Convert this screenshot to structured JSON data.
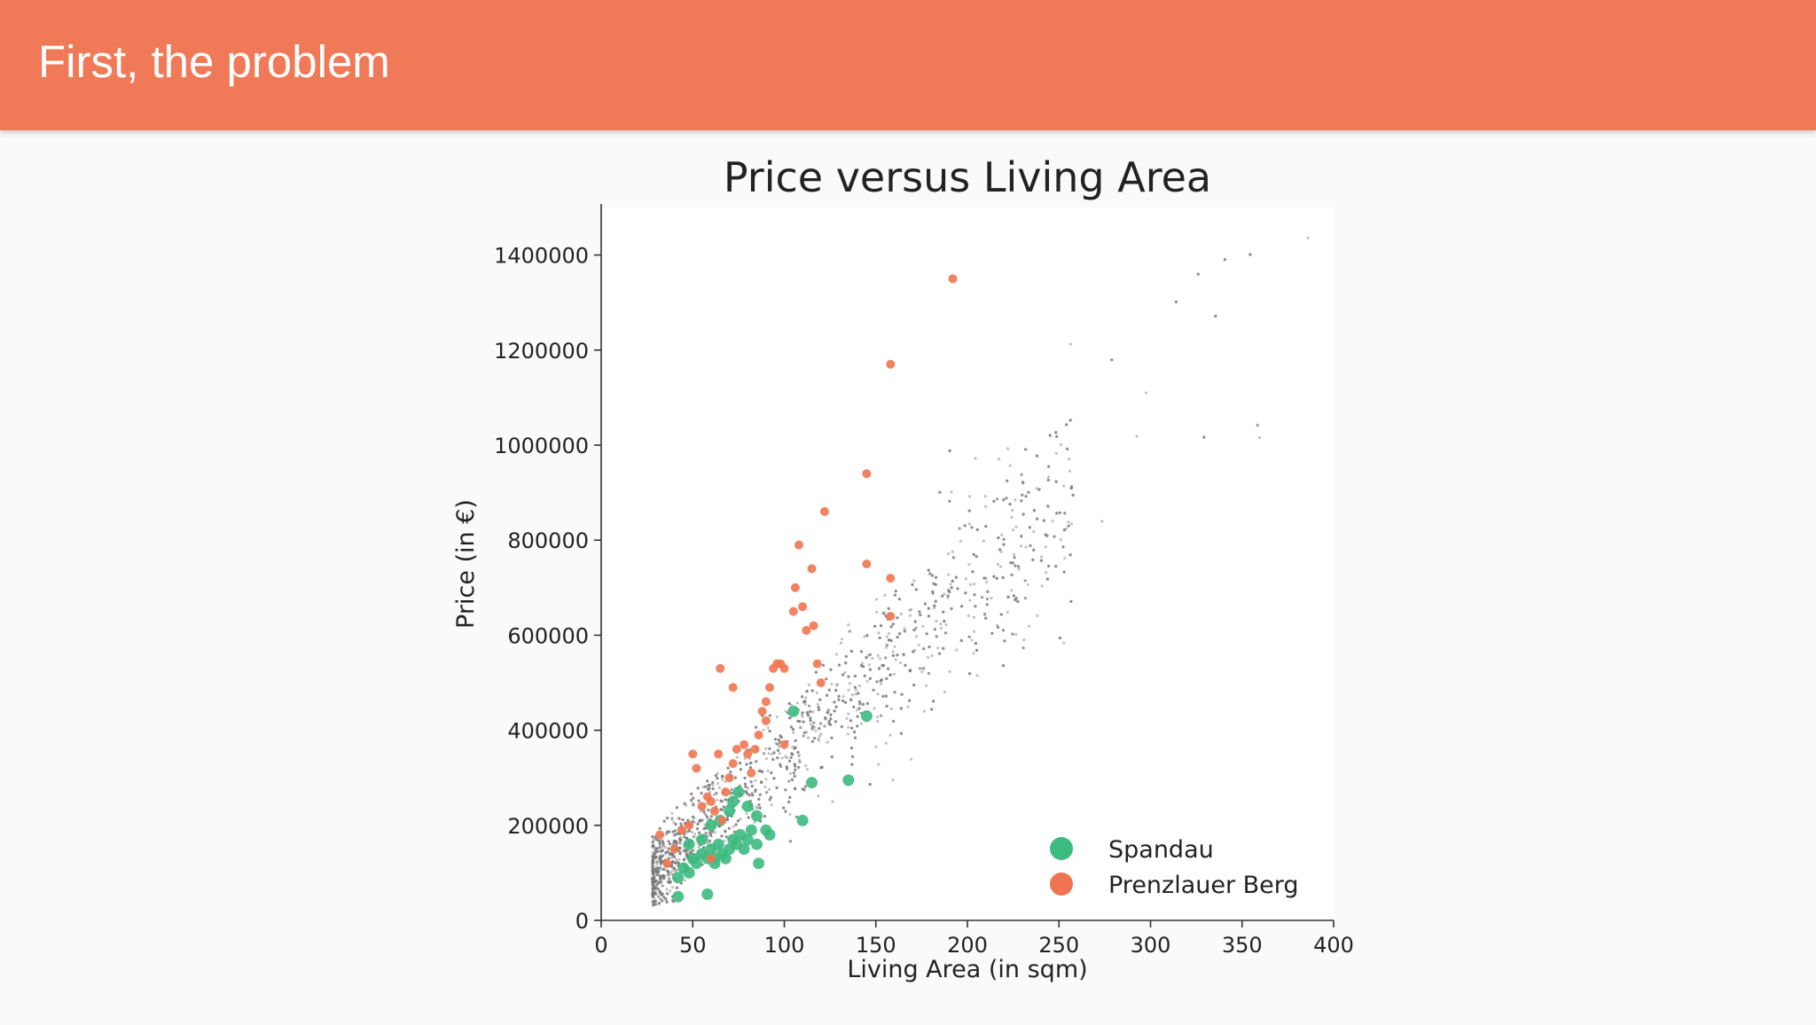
{
  "header": {
    "title": "First, the problem",
    "color": "#f07a57"
  },
  "colors": {
    "background": "#fafafa",
    "background_points": "#777777",
    "spandau": "#3dba80",
    "prenzlauer": "#ef7451",
    "axis": "#333333"
  },
  "chart_data": {
    "type": "scatter",
    "title": "Price versus Living Area",
    "xlabel": "Living Area (in sqm)",
    "ylabel": "Price (in €)",
    "xlim": [
      0,
      400
    ],
    "ylim": [
      0,
      1500000
    ],
    "xticks": [
      0,
      50,
      100,
      150,
      200,
      250,
      300,
      350,
      400
    ],
    "yticks": [
      0,
      200000,
      400000,
      600000,
      800000,
      1000000,
      1200000,
      1400000
    ],
    "xtick_labels": [
      "0",
      "50",
      "100",
      "150",
      "200",
      "250",
      "300",
      "350",
      "400"
    ],
    "ytick_labels": [
      "0",
      "200000",
      "400000",
      "600000",
      "800000",
      "1000000",
      "1200000",
      "1400000"
    ],
    "grid": false,
    "legend_position": "bottom-right",
    "series": [
      {
        "name": "Spandau",
        "color": "#3dba80",
        "points": [
          [
            42,
            90000
          ],
          [
            45,
            110000
          ],
          [
            48,
            100000
          ],
          [
            50,
            130000
          ],
          [
            52,
            120000
          ],
          [
            55,
            140000
          ],
          [
            58,
            130000
          ],
          [
            60,
            150000
          ],
          [
            62,
            120000
          ],
          [
            64,
            160000
          ],
          [
            66,
            140000
          ],
          [
            68,
            130000
          ],
          [
            70,
            150000
          ],
          [
            72,
            170000
          ],
          [
            74,
            160000
          ],
          [
            76,
            180000
          ],
          [
            78,
            150000
          ],
          [
            80,
            170000
          ],
          [
            82,
            190000
          ],
          [
            85,
            160000
          ],
          [
            75,
            270000
          ],
          [
            80,
            240000
          ],
          [
            85,
            220000
          ],
          [
            90,
            190000
          ],
          [
            110,
            210000
          ],
          [
            115,
            290000
          ],
          [
            135,
            295000
          ],
          [
            145,
            430000
          ],
          [
            105,
            440000
          ],
          [
            58,
            55000
          ],
          [
            42,
            50000
          ],
          [
            86,
            120000
          ],
          [
            92,
            180000
          ],
          [
            60,
            200000
          ],
          [
            65,
            210000
          ],
          [
            70,
            230000
          ],
          [
            55,
            170000
          ],
          [
            48,
            160000
          ],
          [
            72,
            250000
          ],
          [
            62,
            130000
          ]
        ]
      },
      {
        "name": "Prenzlauer Berg",
        "color": "#ef7451",
        "points": [
          [
            32,
            180000
          ],
          [
            36,
            120000
          ],
          [
            40,
            150000
          ],
          [
            44,
            190000
          ],
          [
            48,
            200000
          ],
          [
            50,
            350000
          ],
          [
            52,
            320000
          ],
          [
            55,
            240000
          ],
          [
            58,
            260000
          ],
          [
            60,
            250000
          ],
          [
            62,
            230000
          ],
          [
            64,
            350000
          ],
          [
            66,
            210000
          ],
          [
            68,
            270000
          ],
          [
            70,
            300000
          ],
          [
            72,
            330000
          ],
          [
            74,
            360000
          ],
          [
            78,
            370000
          ],
          [
            80,
            350000
          ],
          [
            82,
            310000
          ],
          [
            86,
            390000
          ],
          [
            88,
            440000
          ],
          [
            90,
            460000
          ],
          [
            92,
            490000
          ],
          [
            94,
            530000
          ],
          [
            96,
            540000
          ],
          [
            98,
            540000
          ],
          [
            100,
            370000
          ],
          [
            105,
            650000
          ],
          [
            106,
            700000
          ],
          [
            110,
            660000
          ],
          [
            115,
            740000
          ],
          [
            118,
            540000
          ],
          [
            120,
            500000
          ],
          [
            122,
            860000
          ],
          [
            108,
            790000
          ],
          [
            112,
            610000
          ],
          [
            145,
            940000
          ],
          [
            145,
            750000
          ],
          [
            158,
            720000
          ],
          [
            158,
            640000
          ],
          [
            158,
            1170000
          ],
          [
            192,
            1350000
          ],
          [
            65,
            530000
          ],
          [
            72,
            490000
          ],
          [
            100,
            530000
          ],
          [
            116,
            620000
          ],
          [
            84,
            360000
          ],
          [
            90,
            420000
          ],
          [
            60,
            130000
          ]
        ]
      }
    ]
  }
}
